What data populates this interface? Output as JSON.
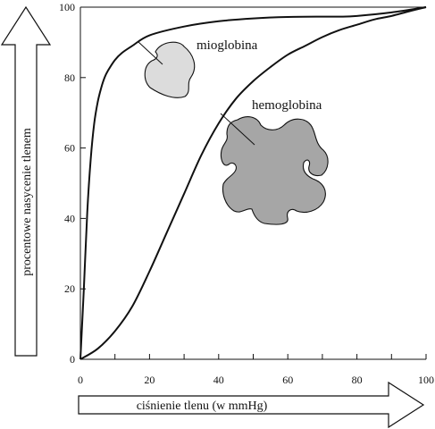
{
  "chart_data": {
    "type": "line",
    "title": "",
    "xlabel": "ciśnienie tlenu (w mmHg)",
    "ylabel": "procentowe nasycenie tlenem",
    "xlim": [
      0,
      100
    ],
    "ylim": [
      0,
      100
    ],
    "x_ticks": [
      0,
      20,
      40,
      60,
      80,
      100
    ],
    "y_ticks": [
      0,
      20,
      40,
      60,
      80,
      100
    ],
    "x_tick_labels": [
      "0",
      "20",
      "40",
      "60",
      "80",
      "100"
    ],
    "y_tick_labels": [
      "0",
      "20",
      "40",
      "60",
      "80",
      "100"
    ],
    "grid": false,
    "legend": "none",
    "series": [
      {
        "name": "mioglobina",
        "color": "#111111",
        "icon": "mioglobina-protein-shape",
        "icon_fill": "#dcdcdc",
        "points": [
          [
            0,
            0
          ],
          [
            1,
            20
          ],
          [
            2,
            42
          ],
          [
            3,
            57
          ],
          [
            4,
            67
          ],
          [
            5,
            73
          ],
          [
            6,
            77
          ],
          [
            7,
            80
          ],
          [
            8,
            82
          ],
          [
            10,
            85
          ],
          [
            12,
            87
          ],
          [
            15,
            89
          ],
          [
            20,
            92
          ],
          [
            30,
            94.5
          ],
          [
            40,
            96
          ],
          [
            50,
            96.8
          ],
          [
            60,
            97.2
          ],
          [
            70,
            97.3
          ],
          [
            75,
            97.3
          ],
          [
            80,
            97.5
          ],
          [
            90,
            98.5
          ],
          [
            100,
            100
          ]
        ]
      },
      {
        "name": "hemoglobina",
        "color": "#111111",
        "icon": "hemoglobina-protein-shape",
        "icon_fill": "#a6a6a6",
        "points": [
          [
            0,
            0
          ],
          [
            5,
            3
          ],
          [
            10,
            8
          ],
          [
            15,
            15
          ],
          [
            20,
            25
          ],
          [
            25,
            36
          ],
          [
            30,
            47
          ],
          [
            35,
            58
          ],
          [
            40,
            67
          ],
          [
            45,
            74
          ],
          [
            50,
            79
          ],
          [
            55,
            83
          ],
          [
            60,
            86.5
          ],
          [
            65,
            89
          ],
          [
            70,
            91.5
          ],
          [
            75,
            93.5
          ],
          [
            80,
            95
          ],
          [
            85,
            96.5
          ],
          [
            90,
            97.5
          ],
          [
            95,
            98.8
          ],
          [
            100,
            100
          ]
        ]
      }
    ]
  },
  "labels": {
    "mioglobina": "mioglobina",
    "hemoglobina": "hemoglobina"
  }
}
